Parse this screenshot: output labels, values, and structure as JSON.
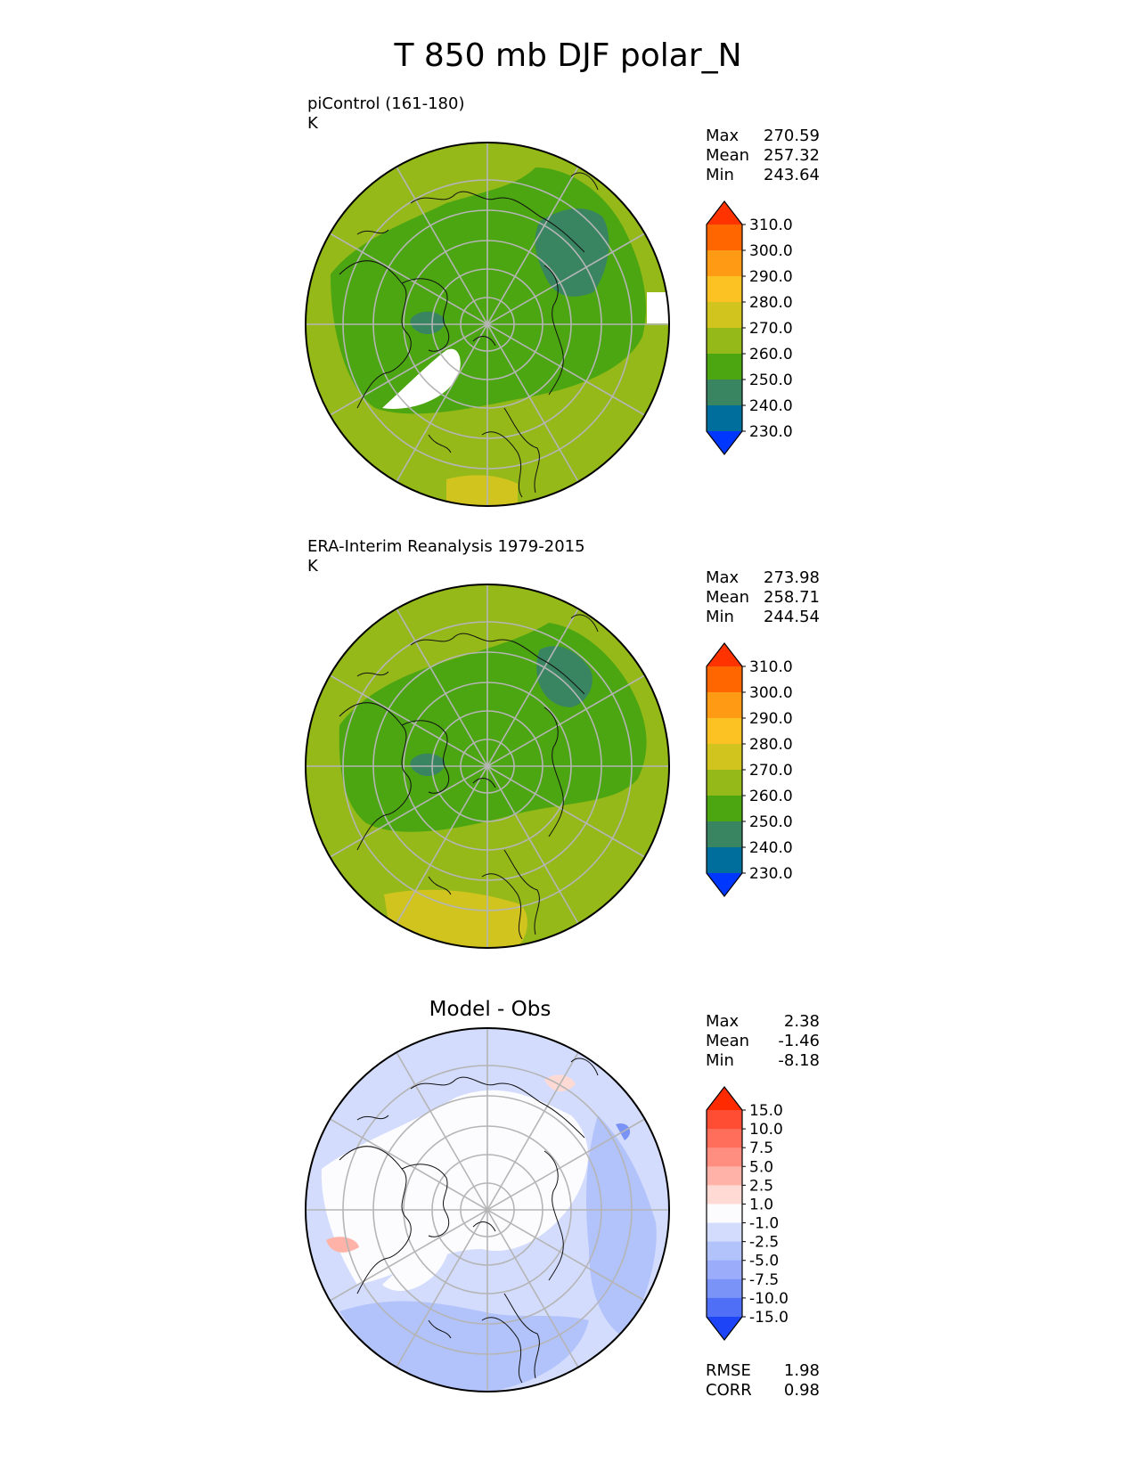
{
  "title": "T 850 mb DJF polar_N",
  "panels": [
    {
      "id": "model",
      "title_line1": "piControl (161-180)",
      "title_line2": "K",
      "stats": [
        {
          "label": "Max",
          "value": "270.59"
        },
        {
          "label": "Mean",
          "value": "257.32"
        },
        {
          "label": "Min",
          "value": "243.64"
        }
      ]
    },
    {
      "id": "obs",
      "title_line1": "ERA-Interim Reanalysis 1979-2015",
      "title_line2": "K",
      "stats": [
        {
          "label": "Max",
          "value": "273.98"
        },
        {
          "label": "Mean",
          "value": "258.71"
        },
        {
          "label": "Min",
          "value": "244.54"
        }
      ]
    },
    {
      "id": "diff",
      "title": "Model - Obs",
      "stats": [
        {
          "label": "Max",
          "value": "2.38"
        },
        {
          "label": "Mean",
          "value": "-1.46"
        },
        {
          "label": "Min",
          "value": "-8.18"
        }
      ],
      "metrics": [
        {
          "label": "RMSE",
          "value": "1.98"
        },
        {
          "label": "CORR",
          "value": "0.98"
        }
      ]
    }
  ],
  "colorbars": {
    "temperature": {
      "levels": [
        "310.0",
        "300.0",
        "290.0",
        "280.0",
        "270.0",
        "260.0",
        "250.0",
        "240.0",
        "230.0"
      ],
      "colors": [
        "#ff3300",
        "#ff6600",
        "#ff9a15",
        "#fcc224",
        "#d2c41f",
        "#95b919",
        "#4ba612",
        "#398561",
        "#006e9d",
        "#0037ff"
      ]
    },
    "difference": {
      "levels": [
        "15.0",
        "10.0",
        "7.5",
        "5.0",
        "2.5",
        "1.0",
        "-1.0",
        "-2.5",
        "-5.0",
        "-7.5",
        "-10.0",
        "-15.0"
      ],
      "colors": [
        "#ff2a00",
        "#ff4d33",
        "#ff6e5a",
        "#ff8d80",
        "#ffb3a8",
        "#ffd9d3",
        "#fcfcff",
        "#d3dcfd",
        "#b2c2fb",
        "#9aacfa",
        "#7a93f7",
        "#4f6ff7",
        "#1e44f8"
      ]
    }
  },
  "colors": {
    "land_outline": "#111111",
    "grid": "#b5b5b5",
    "missing": "#ffffff"
  }
}
